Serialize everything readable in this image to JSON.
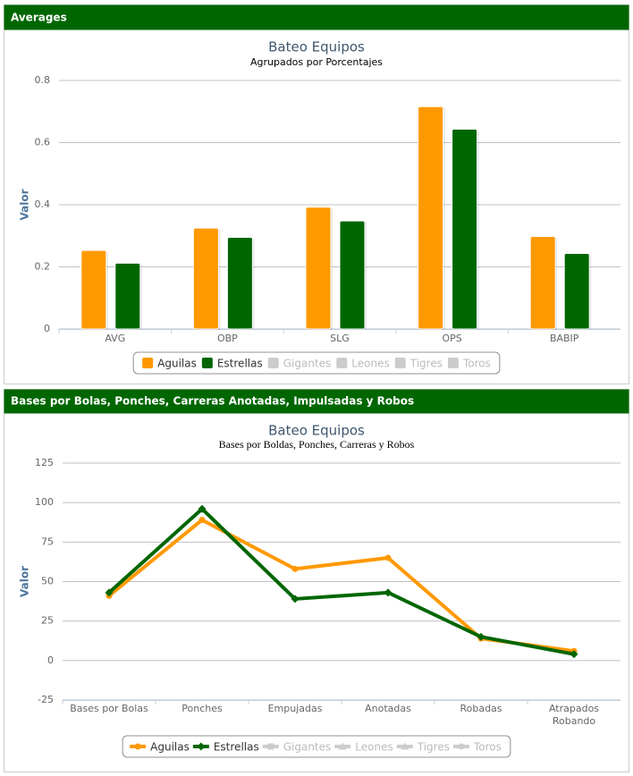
{
  "panel_headers": [
    "Averages",
    "Bases por Bolas, Ponches, Carreras Anotadas, Impulsadas y Robos"
  ],
  "chart_data": [
    {
      "type": "bar",
      "title": "Bateo Equipos",
      "subtitle": "Agrupados por Porcentajes",
      "y_label": "Valor",
      "categories": [
        "AVG",
        "OBP",
        "SLG",
        "OPS",
        "BABIP"
      ],
      "series": [
        {
          "name": "Aguilas",
          "color": "#ff9900",
          "visible": true,
          "values": [
            0.253,
            0.325,
            0.392,
            0.716,
            0.298
          ]
        },
        {
          "name": "Estrellas",
          "color": "#006600",
          "visible": true,
          "values": [
            0.212,
            0.295,
            0.348,
            0.643,
            0.243
          ]
        },
        {
          "name": "Gigantes",
          "color": "#cccccc",
          "visible": false,
          "values": [
            null,
            null,
            null,
            null,
            null
          ]
        },
        {
          "name": "Leones",
          "color": "#cccccc",
          "visible": false,
          "values": [
            null,
            null,
            null,
            null,
            null
          ]
        },
        {
          "name": "Tigres",
          "color": "#cccccc",
          "visible": false,
          "values": [
            null,
            null,
            null,
            null,
            null
          ]
        },
        {
          "name": "Toros",
          "color": "#cccccc",
          "visible": false,
          "values": [
            null,
            null,
            null,
            null,
            null
          ]
        }
      ],
      "ylim": [
        0,
        0.8
      ],
      "yticks": [
        0,
        0.2,
        0.4,
        0.6,
        0.8
      ],
      "grid": true,
      "legend": "bottom"
    },
    {
      "type": "line",
      "title": "Bateo Equipos",
      "subtitle": "Bases por Boldas, Ponches, Carreras y Robos",
      "y_label": "Valor",
      "categories": [
        "Bases por Bolas",
        "Ponches",
        "Empujadas",
        "Anotadas",
        "Robadas",
        "Atrapados Robando"
      ],
      "series": [
        {
          "name": "Aguilas",
          "color": "#ff9900",
          "visible": true,
          "marker": "circle",
          "values": [
            41,
            89,
            58,
            65,
            14,
            6
          ]
        },
        {
          "name": "Estrellas",
          "color": "#006600",
          "visible": true,
          "marker": "diamond",
          "values": [
            43,
            96,
            39,
            43,
            15,
            4
          ]
        },
        {
          "name": "Gigantes",
          "color": "#cccccc",
          "visible": false,
          "marker": "square",
          "values": [
            null,
            null,
            null,
            null,
            null,
            null
          ]
        },
        {
          "name": "Leones",
          "color": "#cccccc",
          "visible": false,
          "marker": "triangle",
          "values": [
            null,
            null,
            null,
            null,
            null,
            null
          ]
        },
        {
          "name": "Tigres",
          "color": "#cccccc",
          "visible": false,
          "marker": "triangle",
          "values": [
            null,
            null,
            null,
            null,
            null,
            null
          ]
        },
        {
          "name": "Toros",
          "color": "#cccccc",
          "visible": false,
          "marker": "circle",
          "values": [
            null,
            null,
            null,
            null,
            null,
            null
          ]
        }
      ],
      "ylim": [
        -25,
        125
      ],
      "yticks": [
        -25,
        0,
        25,
        50,
        75,
        100,
        125
      ],
      "grid": true,
      "legend": "bottom"
    }
  ]
}
